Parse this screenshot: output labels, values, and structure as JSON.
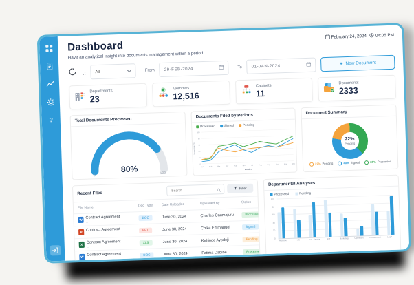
{
  "window": {
    "date": "February 24, 2024",
    "time": "04:05 PM"
  },
  "sidebar": {
    "icons": [
      "dashboard-icon",
      "documents-icon",
      "analytics-icon",
      "settings-icon",
      "help-icon",
      "logout-icon"
    ]
  },
  "header": {
    "title": "Dashboard",
    "subtitle": "Have an analytical insight into documents management within a period"
  },
  "toolbar": {
    "plus": "+",
    "filter_select": "All",
    "from_label": "From",
    "from_date": "29-FEB-2024",
    "to_label": "To",
    "to_date": "01-JAN-2024",
    "new_document": "New Document"
  },
  "stats": [
    {
      "label": "Departments",
      "value": "23",
      "icon": "departments-icon"
    },
    {
      "label": "Members",
      "value": "12,516",
      "icon": "members-icon"
    },
    {
      "label": "Cabinets",
      "value": "11",
      "icon": "cabinets-icon"
    },
    {
      "label": "Documents",
      "value": "2333",
      "icon": "documents-icon"
    }
  ],
  "colors": {
    "accent": "#2e9bd9",
    "green": "#34a853",
    "orange": "#f5a33c",
    "pale": "#d9eaf7",
    "frame": "#57b3d6"
  },
  "chart_data": [
    {
      "id": "gauge",
      "type": "gauge",
      "title": "Total Documents Processed",
      "value": 80,
      "min": 0,
      "max": 100,
      "label": "80%",
      "color": "#2e9bd9",
      "track": "#e3e6ea"
    },
    {
      "id": "line",
      "type": "line",
      "title": "Documents Filed by Periods",
      "xlabel": "Months",
      "ylabel": "Percentage (%)",
      "ylim": [
        0,
        100
      ],
      "grid": true,
      "legend_position": "top",
      "categories": [
        "Jan",
        "Feb",
        "Mar",
        "Apr",
        "May",
        "Jun",
        "Jul",
        "Aug",
        "Sep",
        "Oct",
        "Nov",
        "Dec"
      ],
      "series": [
        {
          "name": "Processed",
          "color": "#4caf50",
          "values": [
            12,
            16,
            54,
            57,
            62,
            50,
            57,
            65,
            59,
            55,
            67,
            78
          ]
        },
        {
          "name": "Signed",
          "color": "#2e9bd9",
          "values": [
            7,
            10,
            36,
            48,
            57,
            40,
            31,
            45,
            51,
            45,
            57,
            70
          ]
        },
        {
          "name": "Pending",
          "color": "#f5a33c",
          "values": [
            14,
            19,
            48,
            40,
            34,
            41,
            44,
            46,
            48,
            45,
            51,
            57
          ]
        }
      ]
    },
    {
      "id": "donut",
      "type": "pie",
      "title": "Document Summary",
      "center_value": "22%",
      "center_label": "Pending",
      "segments": [
        {
          "name": "Processed",
          "pct": 38,
          "color": "#34a853"
        },
        {
          "name": "Signed",
          "pct": 40,
          "color": "#2e9bd9"
        },
        {
          "name": "Pending",
          "pct": 22,
          "color": "#f5a33c"
        }
      ],
      "legend": [
        {
          "pct": "22%",
          "name": "Pending",
          "color": "#f5a33c"
        },
        {
          "pct": "40%",
          "name": "Signed",
          "color": "#2e9bd9"
        },
        {
          "pct": "38%",
          "name": "Processed",
          "color": "#34a853"
        }
      ]
    },
    {
      "id": "bars",
      "type": "bar",
      "title": "Departmental Analyses",
      "ylim": [
        0,
        100
      ],
      "grid": true,
      "legend_position": "top",
      "categories": [
        "Accounts",
        "HR",
        "Cus. Service",
        "ICT",
        "Marketing",
        "Operations",
        "Procurement",
        "Legal"
      ],
      "series": [
        {
          "name": "Processed",
          "color": "#2e9bd9",
          "values": [
            78,
            45,
            88,
            60,
            47,
            25,
            58,
            97
          ]
        },
        {
          "name": "Pending",
          "color": "#d9eaf7",
          "values": [
            65,
            72,
            55,
            93,
            57,
            18,
            78,
            60
          ]
        }
      ]
    }
  ],
  "recent_files": {
    "title": "Recent Files",
    "search_placeholder": "Search",
    "filter_label": "Filter",
    "row_sub": "...",
    "columns": [
      "File Name",
      "Doc Type",
      "Date Uploaded",
      "Uploaded By",
      "Status"
    ],
    "rows": [
      {
        "name": "Contract Agreement",
        "type": "DOC",
        "date": "June 30, 2024",
        "by": "Charles Onumajuru",
        "status": "Processed"
      },
      {
        "name": "Contract Agreement",
        "type": "PPT",
        "date": "June 30, 2024",
        "by": "Chike Emmanuel",
        "status": "Signed"
      },
      {
        "name": "Contract Agreement",
        "type": "XLS",
        "date": "June 30, 2024",
        "by": "Kehinde Ayodeji",
        "status": "Pending"
      },
      {
        "name": "Contract Agreement",
        "type": "DOC",
        "date": "June 30, 2024",
        "by": "Fatima Dabibe",
        "status": "Processed"
      }
    ]
  }
}
